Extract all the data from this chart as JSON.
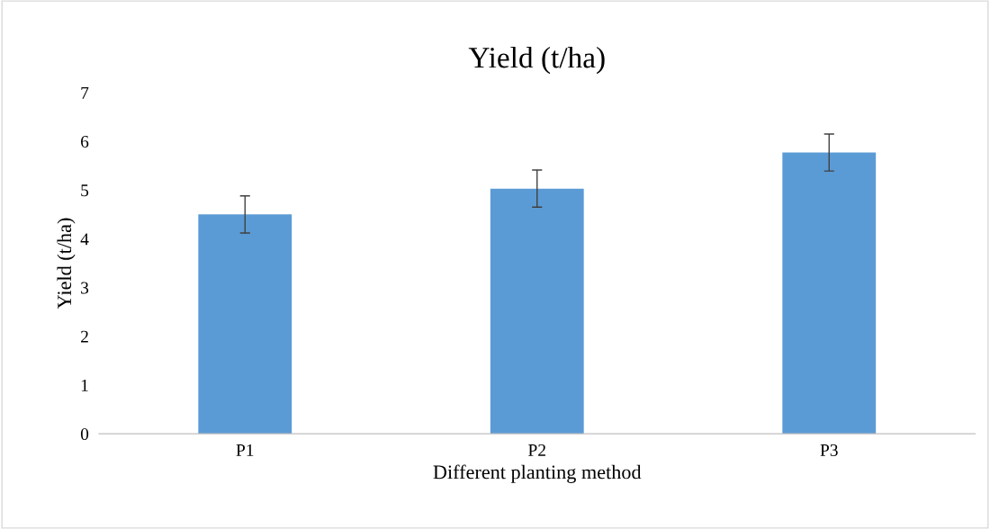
{
  "chart_data": {
    "type": "bar",
    "title": "Yield (t/ha)",
    "xlabel": "Different planting method",
    "ylabel": "Yield (t/ha)",
    "categories": [
      "P1",
      "P2",
      "P3"
    ],
    "values": [
      4.5,
      5.03,
      5.77
    ],
    "errors": [
      0.38,
      0.38,
      0.38
    ],
    "color": "#5b9bd5",
    "ylim": [
      0,
      7
    ],
    "yticks": [
      0,
      1,
      2,
      3,
      4,
      5,
      6,
      7
    ],
    "grid": false,
    "legend": false
  }
}
